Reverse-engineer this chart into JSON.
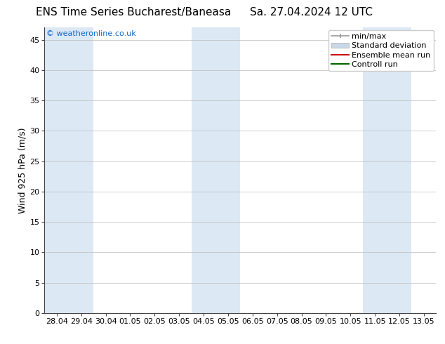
{
  "title_left": "ENS Time Series Bucharest/Baneasa",
  "title_right": "Sa. 27.04.2024 12 UTC",
  "ylabel": "Wind 925 hPa (m/s)",
  "watermark": "© weatheronline.co.uk",
  "ylim": [
    0,
    47
  ],
  "yticks": [
    0,
    5,
    10,
    15,
    20,
    25,
    30,
    35,
    40,
    45
  ],
  "x_labels": [
    "28.04",
    "29.04",
    "30.04",
    "01.05",
    "02.05",
    "03.05",
    "04.05",
    "05.05",
    "06.05",
    "07.05",
    "08.05",
    "09.05",
    "10.05",
    "11.05",
    "12.05",
    "13.05"
  ],
  "num_days": 16,
  "shaded_indices": [
    0,
    1,
    6,
    7,
    13,
    14
  ],
  "shaded_color": "#dce9f5",
  "bg_color": "#ffffff",
  "legend_entries": [
    "min/max",
    "Standard deviation",
    "Ensemble mean run",
    "Controll run"
  ],
  "minmax_color": "#999999",
  "stddev_color": "#c8d8e8",
  "ensemble_mean_color": "#cc0000",
  "control_run_color": "#006600",
  "title_fontsize": 11,
  "axis_label_fontsize": 9,
  "tick_fontsize": 8,
  "legend_fontsize": 8,
  "watermark_color": "#1166cc",
  "watermark_fontsize": 8
}
